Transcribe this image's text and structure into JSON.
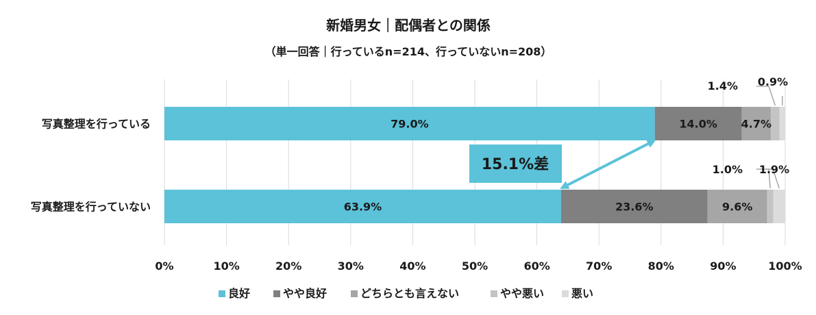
{
  "chart_data": {
    "type": "bar",
    "orientation": "horizontal",
    "stacked": true,
    "title": "新婚男女｜配偶者との関係",
    "subtitle": "（単一回答｜行っているn=214、行っていないn=208）",
    "categories": [
      "写真整理を行っている",
      "写真整理を行っていない"
    ],
    "series": [
      {
        "name": "良好",
        "color": "#5bc2d9",
        "values": [
          79.0,
          63.9
        ]
      },
      {
        "name": "やや良好",
        "color": "#808080",
        "values": [
          14.0,
          23.6
        ]
      },
      {
        "name": "どちらとも言えない",
        "color": "#a6a6a6",
        "values": [
          4.7,
          9.6
        ]
      },
      {
        "name": "やや悪い",
        "color": "#c4c4c4",
        "values": [
          1.4,
          1.0
        ]
      },
      {
        "name": "悪い",
        "color": "#dcdcdc",
        "values": [
          0.9,
          1.9
        ]
      }
    ],
    "data_labels": [
      [
        "79.0%",
        "14.0%",
        "4.7%",
        "1.4%",
        "0.9%"
      ],
      [
        "63.9%",
        "23.6%",
        "9.6%",
        "1.0%",
        "1.9%"
      ]
    ],
    "xlim": [
      0,
      100
    ],
    "xticks": [
      "0%",
      "10%",
      "20%",
      "30%",
      "40%",
      "50%",
      "60%",
      "70%",
      "80%",
      "90%",
      "100%"
    ],
    "grid": true,
    "legend": "bottom",
    "annotation": {
      "text": "15.1%差",
      "from": [
        0,
        79.0
      ],
      "to": [
        1,
        63.9
      ],
      "color": "#5bc2d9"
    }
  }
}
